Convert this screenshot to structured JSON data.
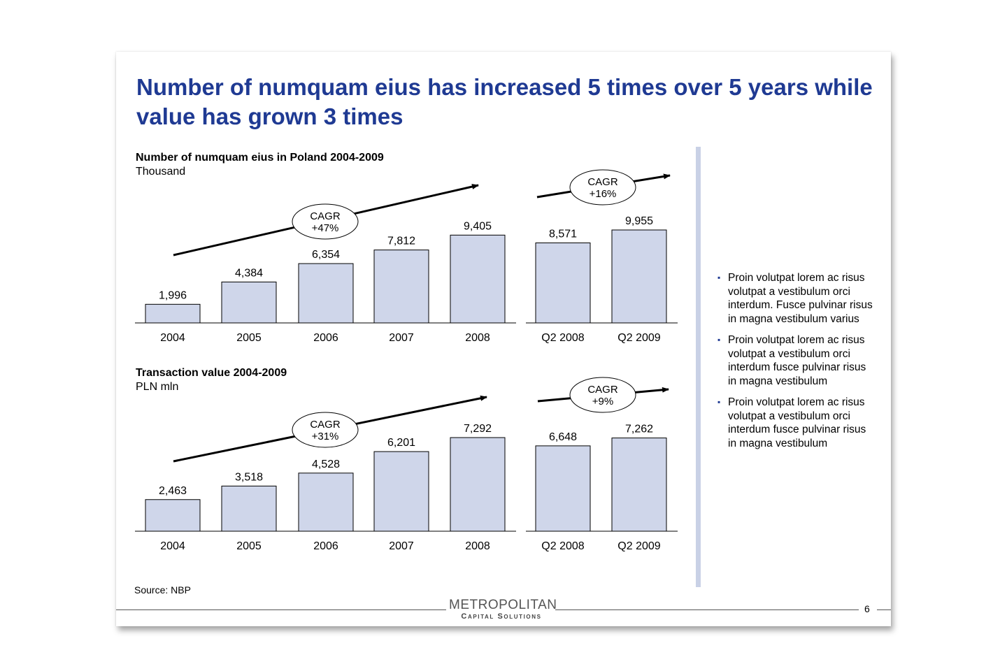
{
  "slide": {
    "title": "Number of numquam eius has increased 5 times over 5 years while value has grown 3 times",
    "source": "Source: NBP",
    "page_number": "6",
    "logo": {
      "main": "METROPOLITAN",
      "sub": "Capital Solutions"
    },
    "bullets": [
      "Proin volutpat lorem ac risus volutpat a vestibulum orci interdum. Fusce pulvinar risus in magna vestibulum varius",
      "Proin volutpat lorem ac risus volutpat a vestibulum orci interdum fusce pulvinar risus in magna vestibulum",
      "Proin volutpat lorem ac risus volutpat a vestibulum orci interdum fusce pulvinar risus in magna vestibulum"
    ],
    "colors": {
      "title": "#1f3a93",
      "bar_fill": "#cfd6ea",
      "divider": "#c9d1e6"
    }
  },
  "chart_data": [
    {
      "type": "bar",
      "title": "Number of numquam eius in Poland 2004-2009",
      "unit": "Thousand",
      "categories": [
        "2004",
        "2005",
        "2006",
        "2007",
        "2008"
      ],
      "values": [
        1996,
        4384,
        6354,
        7812,
        9405
      ],
      "value_labels": [
        "1,996",
        "4,384",
        "6,354",
        "7,812",
        "9,405"
      ],
      "cagr": {
        "label": "CAGR",
        "value": "+47%"
      },
      "quarterly": {
        "categories": [
          "Q2 2008",
          "Q2 2009"
        ],
        "values": [
          8571,
          9955
        ],
        "value_labels": [
          "8,571",
          "9,955"
        ],
        "cagr": {
          "label": "CAGR",
          "value": "+16%"
        }
      }
    },
    {
      "type": "bar",
      "title": "Transaction value 2004-2009",
      "unit": "PLN mln",
      "categories": [
        "2004",
        "2005",
        "2006",
        "2007",
        "2008"
      ],
      "values": [
        2463,
        3518,
        4528,
        6201,
        7292
      ],
      "value_labels": [
        "2,463",
        "3,518",
        "4,528",
        "6,201",
        "7,292"
      ],
      "cagr": {
        "label": "CAGR",
        "value": "+31%"
      },
      "quarterly": {
        "categories": [
          "Q2 2008",
          "Q2 2009"
        ],
        "values": [
          6648,
          7262
        ],
        "value_labels": [
          "6,648",
          "7,262"
        ],
        "cagr": {
          "label": "CAGR",
          "value": "+9%"
        }
      }
    }
  ]
}
